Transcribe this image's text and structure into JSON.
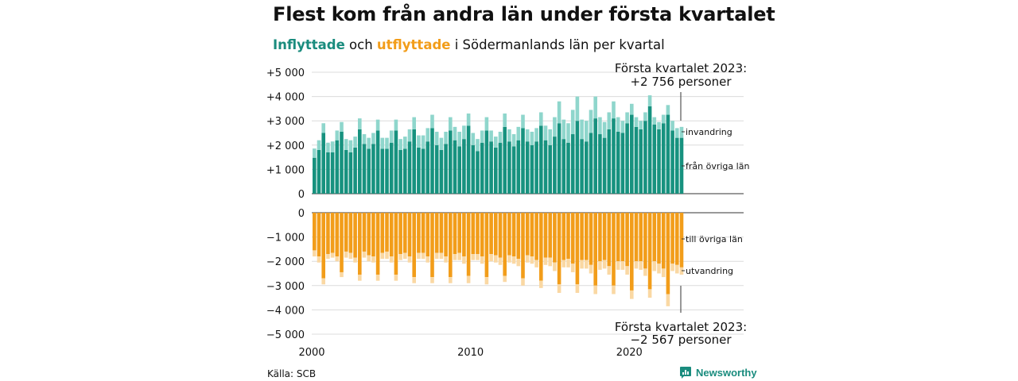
{
  "title": "Flest kom från andra län under första kvartalet",
  "subtitle": {
    "part1": "Inflyttade",
    "part2": " och ",
    "part3": "utflyttade",
    "part4": " i Södermanlands län per kvartal"
  },
  "colors": {
    "in_dark": "#17927f",
    "in_light": "#8fd6cc",
    "out_dark": "#f29d1a",
    "out_light": "#fad8a3",
    "accent_teal": "#1a8c7e",
    "accent_orange": "#f29d1a"
  },
  "source": "Källa: SCB",
  "brand": "Newsworthy",
  "chart_data": [
    {
      "type": "bar",
      "stacked": true,
      "panel": "inflyttade",
      "ylim": [
        0,
        5000
      ],
      "yticks": [
        {
          "value": 0,
          "label": "0"
        },
        {
          "value": 1000,
          "label": "+1 000"
        },
        {
          "value": 2000,
          "label": "+2 000"
        },
        {
          "value": 3000,
          "label": "+3 000"
        },
        {
          "value": 4000,
          "label": "+4 000"
        },
        {
          "value": 5000,
          "label": "+5 000"
        }
      ],
      "xlim": [
        2000,
        2027.2
      ],
      "xticks": [
        {
          "value": 2000,
          "label": "2000"
        },
        {
          "value": 2010,
          "label": "2010"
        },
        {
          "value": 2020,
          "label": "2020"
        }
      ],
      "series": [
        {
          "name": "från övriga län",
          "color": "#17927f",
          "values": [
            1480,
            1800,
            2500,
            1700,
            1700,
            2200,
            2550,
            1800,
            1700,
            1900,
            2650,
            2050,
            1850,
            2050,
            2600,
            1850,
            1850,
            2100,
            2600,
            1800,
            1850,
            2150,
            2650,
            1900,
            1850,
            2150,
            2700,
            2000,
            1800,
            2050,
            2600,
            2200,
            1950,
            2250,
            2800,
            2000,
            1750,
            2100,
            2600,
            2150,
            1900,
            2100,
            2750,
            2150,
            1950,
            2200,
            2700,
            2150,
            2000,
            2150,
            2800,
            2200,
            2000,
            2350,
            2900,
            2250,
            2100,
            2450,
            3000,
            2250,
            2150,
            2500,
            3100,
            2450,
            2300,
            2650,
            3100,
            2550,
            2500,
            2900,
            3250,
            2750,
            2650,
            3000,
            3600,
            2850,
            2650,
            2900,
            3250,
            2600,
            2300,
            2300
          ]
        },
        {
          "name": "invandring",
          "color": "#8fd6cc",
          "values": [
            380,
            400,
            400,
            400,
            450,
            400,
            400,
            450,
            500,
            450,
            450,
            400,
            450,
            450,
            450,
            450,
            450,
            500,
            450,
            450,
            500,
            500,
            500,
            500,
            550,
            550,
            550,
            550,
            500,
            500,
            550,
            550,
            600,
            550,
            500,
            500,
            500,
            500,
            550,
            450,
            450,
            450,
            550,
            500,
            500,
            550,
            550,
            500,
            550,
            550,
            550,
            600,
            650,
            800,
            900,
            800,
            800,
            1000,
            1000,
            800,
            850,
            950,
            900,
            700,
            650,
            700,
            700,
            600,
            500,
            450,
            450,
            400,
            350,
            350,
            450,
            300,
            300,
            350,
            400,
            400,
            400,
            450
          ]
        }
      ]
    },
    {
      "type": "bar",
      "stacked": true,
      "panel": "utflyttade",
      "ylim": [
        -5000,
        0
      ],
      "yticks": [
        {
          "value": 0,
          "label": "0"
        },
        {
          "value": -1000,
          "label": "−1 000"
        },
        {
          "value": -2000,
          "label": "−2 000"
        },
        {
          "value": -3000,
          "label": "−3 000"
        },
        {
          "value": -4000,
          "label": "−4 000"
        },
        {
          "value": -5000,
          "label": "−5 000"
        }
      ],
      "series": [
        {
          "name": "till övriga län",
          "color": "#f29d1a",
          "values": [
            -1550,
            -1800,
            -2700,
            -1700,
            -1650,
            -1800,
            -2450,
            -1600,
            -1650,
            -1850,
            -2550,
            -1600,
            -1750,
            -1800,
            -2550,
            -1650,
            -1600,
            -1800,
            -2550,
            -1700,
            -1650,
            -1800,
            -2650,
            -1650,
            -1650,
            -1800,
            -2650,
            -1650,
            -1650,
            -1800,
            -2650,
            -1700,
            -1650,
            -1800,
            -2600,
            -1700,
            -1700,
            -1800,
            -2650,
            -1700,
            -1750,
            -1850,
            -2600,
            -1750,
            -1800,
            -1900,
            -2700,
            -1750,
            -1800,
            -1950,
            -2800,
            -1850,
            -1850,
            -2050,
            -2950,
            -1950,
            -1900,
            -2100,
            -2950,
            -1950,
            -1950,
            -2150,
            -3000,
            -2000,
            -1950,
            -2200,
            -3000,
            -2000,
            -2000,
            -2200,
            -3200,
            -2000,
            -2000,
            -2300,
            -3150,
            -2000,
            -2100,
            -2300,
            -3350,
            -2100,
            -2150,
            -2250
          ]
        },
        {
          "name": "utvandring",
          "color": "#fad8a3",
          "values": [
            -250,
            -250,
            -250,
            -200,
            -200,
            -200,
            -200,
            -250,
            -250,
            -200,
            -250,
            -250,
            -250,
            -250,
            -250,
            -250,
            -300,
            -250,
            -250,
            -250,
            -250,
            -250,
            -250,
            -250,
            -250,
            -250,
            -250,
            -250,
            -250,
            -250,
            -250,
            -250,
            -300,
            -300,
            -300,
            -250,
            -250,
            -300,
            -300,
            -300,
            -300,
            -300,
            -250,
            -300,
            -300,
            -300,
            -300,
            -300,
            -300,
            -300,
            -300,
            -300,
            -350,
            -350,
            -350,
            -300,
            -350,
            -350,
            -350,
            -350,
            -350,
            -350,
            -350,
            -350,
            -350,
            -350,
            -350,
            -350,
            -350,
            -350,
            -350,
            -300,
            -350,
            -300,
            -350,
            -400,
            -400,
            -350,
            -500,
            -300,
            -350,
            -300
          ]
        }
      ]
    }
  ],
  "annotations": {
    "top": {
      "line1": "Första kvartalet 2023:",
      "line2": "+2 756 personer"
    },
    "bottom": {
      "line1": "Första kvartalet 2023:",
      "line2": "−2 567 personer"
    }
  },
  "legend_labels": {
    "invandring": "invandring",
    "fran_ovriga_lan": "från övriga län",
    "till_ovriga_lan": "till övriga län",
    "utvandring": "utvandring"
  }
}
